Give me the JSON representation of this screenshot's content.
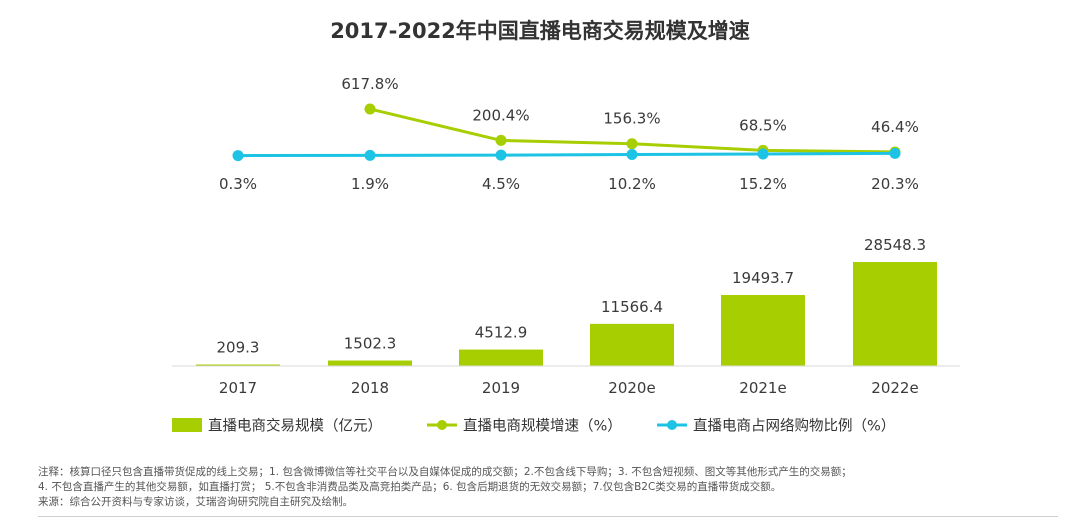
{
  "chart_data": {
    "type": "bar+line",
    "title": "2017-2022年中国直播电商交易规模及增速",
    "categories": [
      "2017",
      "2018",
      "2019",
      "2020e",
      "2021e",
      "2022e"
    ],
    "series": [
      {
        "name": "直播电商交易规模（亿元）",
        "kind": "bar",
        "values": [
          209.3,
          1502.3,
          4512.9,
          11566.4,
          19493.7,
          28548.3
        ],
        "labels": [
          "209.3",
          "1502.3",
          "4512.9",
          "11566.4",
          "19493.7",
          "28548.3"
        ],
        "color": "#a6ce00"
      },
      {
        "name": "直播电商规模增速（%）",
        "kind": "line",
        "values": [
          null,
          617.8,
          200.4,
          156.3,
          68.5,
          46.4
        ],
        "labels": [
          "",
          "617.8%",
          "200.4%",
          "156.3%",
          "68.5%",
          "46.4%"
        ],
        "color": "#a6ce00"
      },
      {
        "name": "直播电商占网络购物比例（%）",
        "kind": "line",
        "values": [
          0.3,
          1.9,
          4.5,
          10.2,
          15.2,
          20.3
        ],
        "labels": [
          "0.3%",
          "1.9%",
          "4.5%",
          "10.2%",
          "15.2%",
          "20.3%"
        ],
        "color": "#1dc3e4"
      }
    ],
    "ylim_bar": [
      0,
      28548.3
    ],
    "legend_position": "bottom"
  },
  "notes": {
    "line1": "注释：核算口径只包含直播带货促成的线上交易；1. 包含微博微信等社交平台以及自媒体促成的成交额；2.不包含线下导购；3. 不包含短视频、图文等其他形式产生的交易额；",
    "line2": " 4. 不包含直播产生的其他交易额，如直播打赏；  5.不包含非消费品类及高竞拍类产品；6. 包含后期退货的无效交易额；7.仅包含B2C类交易的直播带货成交额。",
    "source": "来源：综合公开资料与专家访谈，艾瑞咨询研究院自主研究及绘制。"
  }
}
